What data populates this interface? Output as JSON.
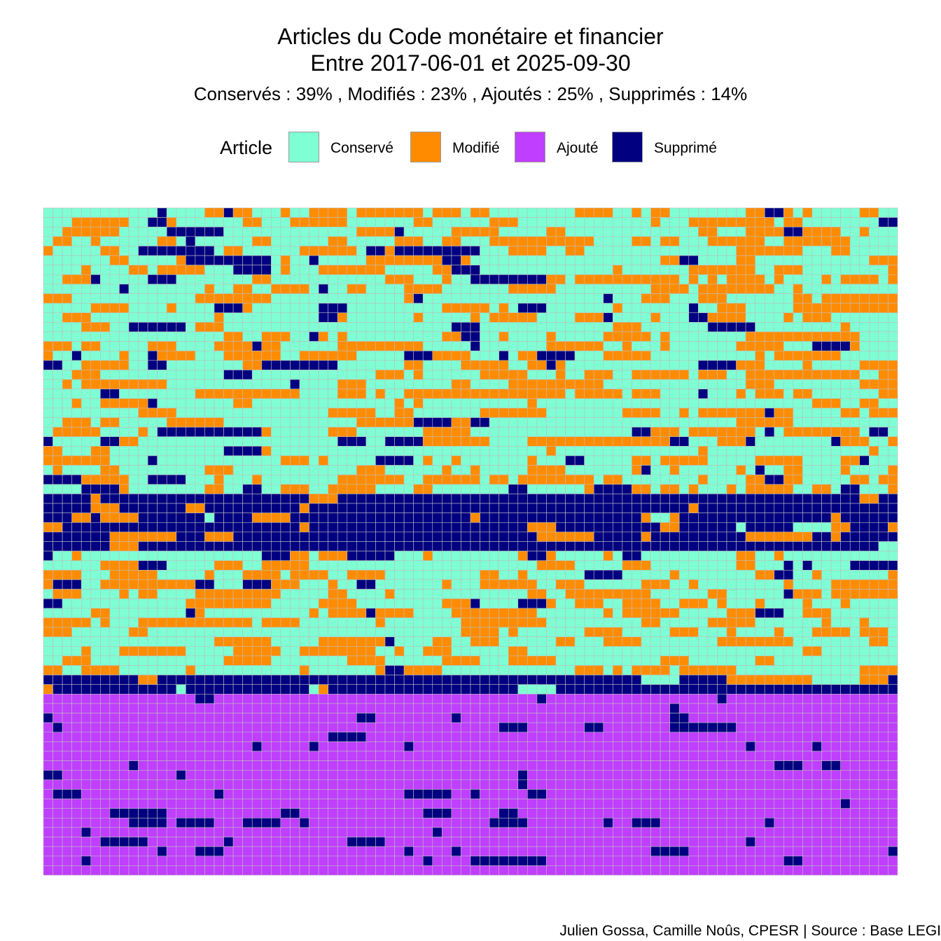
{
  "title_line1": "Articles du Code monétaire et financier",
  "title_line2": "Entre 2017-06-01 et 2025-09-30",
  "subtitle": "Conservés :  39% , Modifiés :  23% , Ajoutés :  25% , Supprimés :  14%",
  "caption": "Julien Gossa, Camille Noûs, CPESR  |  Source : Base LEGI",
  "legend": {
    "title": "Article",
    "items": [
      {
        "label": "Conservé",
        "color": "#7FFFD4"
      },
      {
        "label": "Modifié",
        "color": "#FF8C00"
      },
      {
        "label": "Ajouté",
        "color": "#BF3EFF"
      },
      {
        "label": "Supprimé",
        "color": "#000080"
      }
    ]
  },
  "chart_data": {
    "type": "heatmap",
    "title": "Articles du Code monétaire et financier",
    "subtitle": "Entre 2017-06-01 et 2025-09-30",
    "grid": "waffle",
    "columns": 90,
    "rows": 70,
    "tile_border_color": "#bdbdbd",
    "categories": [
      "Conservé",
      "Modifié",
      "Ajouté",
      "Supprimé"
    ],
    "shares_percent": {
      "Conservé": 39,
      "Modifié": 23,
      "Ajouté": 25,
      "Supprimé": 14
    },
    "colors": {
      "Conservé": "#7FFFD4",
      "Modifié": "#FF8C00",
      "Ajouté": "#BF3EFF",
      "Supprimé": "#000080"
    },
    "bands": [
      {
        "rows": [
          0,
          29
        ],
        "composition": {
          "Conservé": 0.58,
          "Modifié": 0.34,
          "Supprimé": 0.08
        },
        "pattern": "mixed"
      },
      {
        "rows": [
          30,
          35
        ],
        "composition": {
          "Supprimé": 0.86,
          "Modifié": 0.12,
          "Conservé": 0.02
        },
        "pattern": "deleted-band"
      },
      {
        "rows": [
          36,
          48
        ],
        "composition": {
          "Conservé": 0.62,
          "Modifié": 0.32,
          "Supprimé": 0.06
        },
        "pattern": "mixed"
      },
      {
        "rows": [
          49,
          50
        ],
        "composition": {
          "Supprimé": 0.88,
          "Modifié": 0.06,
          "Conservé": 0.06
        },
        "pattern": "deleted-band"
      },
      {
        "rows": [
          51,
          69
        ],
        "composition": {
          "Ajouté": 0.9,
          "Supprimé": 0.1
        },
        "pattern": "added-band"
      }
    ]
  }
}
